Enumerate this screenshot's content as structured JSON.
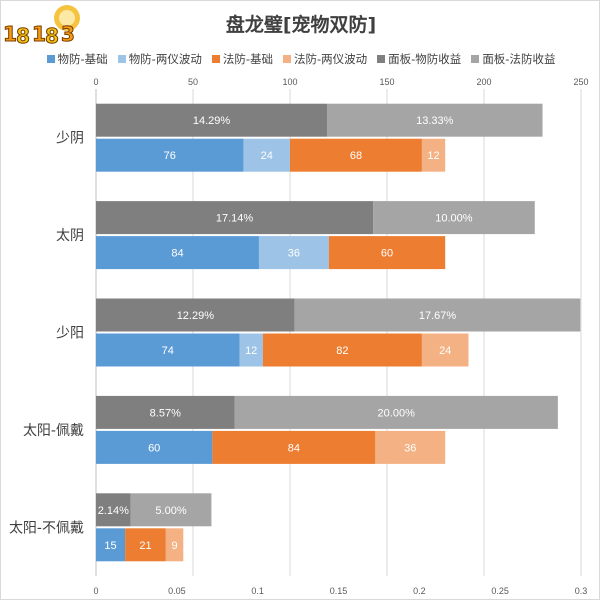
{
  "chart_data": {
    "type": "bar",
    "title": "盘龙璧[宠物双防]",
    "categories": [
      "少阴",
      "太阴",
      "少阳",
      "太阳-佩戴",
      "太阳-不佩戴"
    ],
    "top_axis": {
      "ticks": [
        "0",
        "50",
        "100",
        "150",
        "200",
        "250"
      ],
      "range": [
        0,
        250
      ]
    },
    "bottom_axis": {
      "ticks": [
        "0",
        "0.05",
        "0.1",
        "0.15",
        "0.2",
        "0.25",
        "0.3"
      ],
      "range": [
        0,
        0.3
      ]
    },
    "legend": {
      "placement": "top"
    },
    "series": [
      {
        "name": "物防-基础",
        "color": "#5b9bd5",
        "axis": "top",
        "group": "base",
        "values": [
          76,
          84,
          74,
          60,
          15
        ],
        "labels": [
          "76",
          "84",
          "74",
          "60",
          "15"
        ]
      },
      {
        "name": "物防-两仪波动",
        "color": "#9dc3e6",
        "axis": "top",
        "group": "base",
        "values": [
          24,
          36,
          12,
          0,
          0
        ],
        "labels": [
          "24",
          "36",
          "12",
          "",
          ""
        ]
      },
      {
        "name": "法防-基础",
        "color": "#ed7d31",
        "axis": "top",
        "group": "base",
        "values": [
          68,
          60,
          82,
          84,
          21
        ],
        "labels": [
          "68",
          "60",
          "82",
          "84",
          "21"
        ]
      },
      {
        "name": "法防-两仪波动",
        "color": "#f4b183",
        "axis": "top",
        "group": "base",
        "values": [
          12,
          0,
          24,
          36,
          9
        ],
        "labels": [
          "12",
          "",
          "24",
          "36",
          "9"
        ]
      },
      {
        "name": "面板-物防收益",
        "color": "#7f7f7f",
        "axis": "bottom",
        "group": "gain",
        "values": [
          0.1429,
          0.1714,
          0.1229,
          0.0857,
          0.0214
        ],
        "labels": [
          "14.29%",
          "17.14%",
          "12.29%",
          "8.57%",
          "2.14%"
        ]
      },
      {
        "name": "面板-法防收益",
        "color": "#a5a5a5",
        "axis": "bottom",
        "group": "gain",
        "values": [
          0.1333,
          0.1,
          0.1767,
          0.2,
          0.05
        ],
        "labels": [
          "13.33%",
          "10.00%",
          "17.67%",
          "20.00%",
          "5.00%"
        ]
      }
    ],
    "grid": true
  },
  "watermark": {
    "text": "18183",
    "alt": "偶"
  }
}
